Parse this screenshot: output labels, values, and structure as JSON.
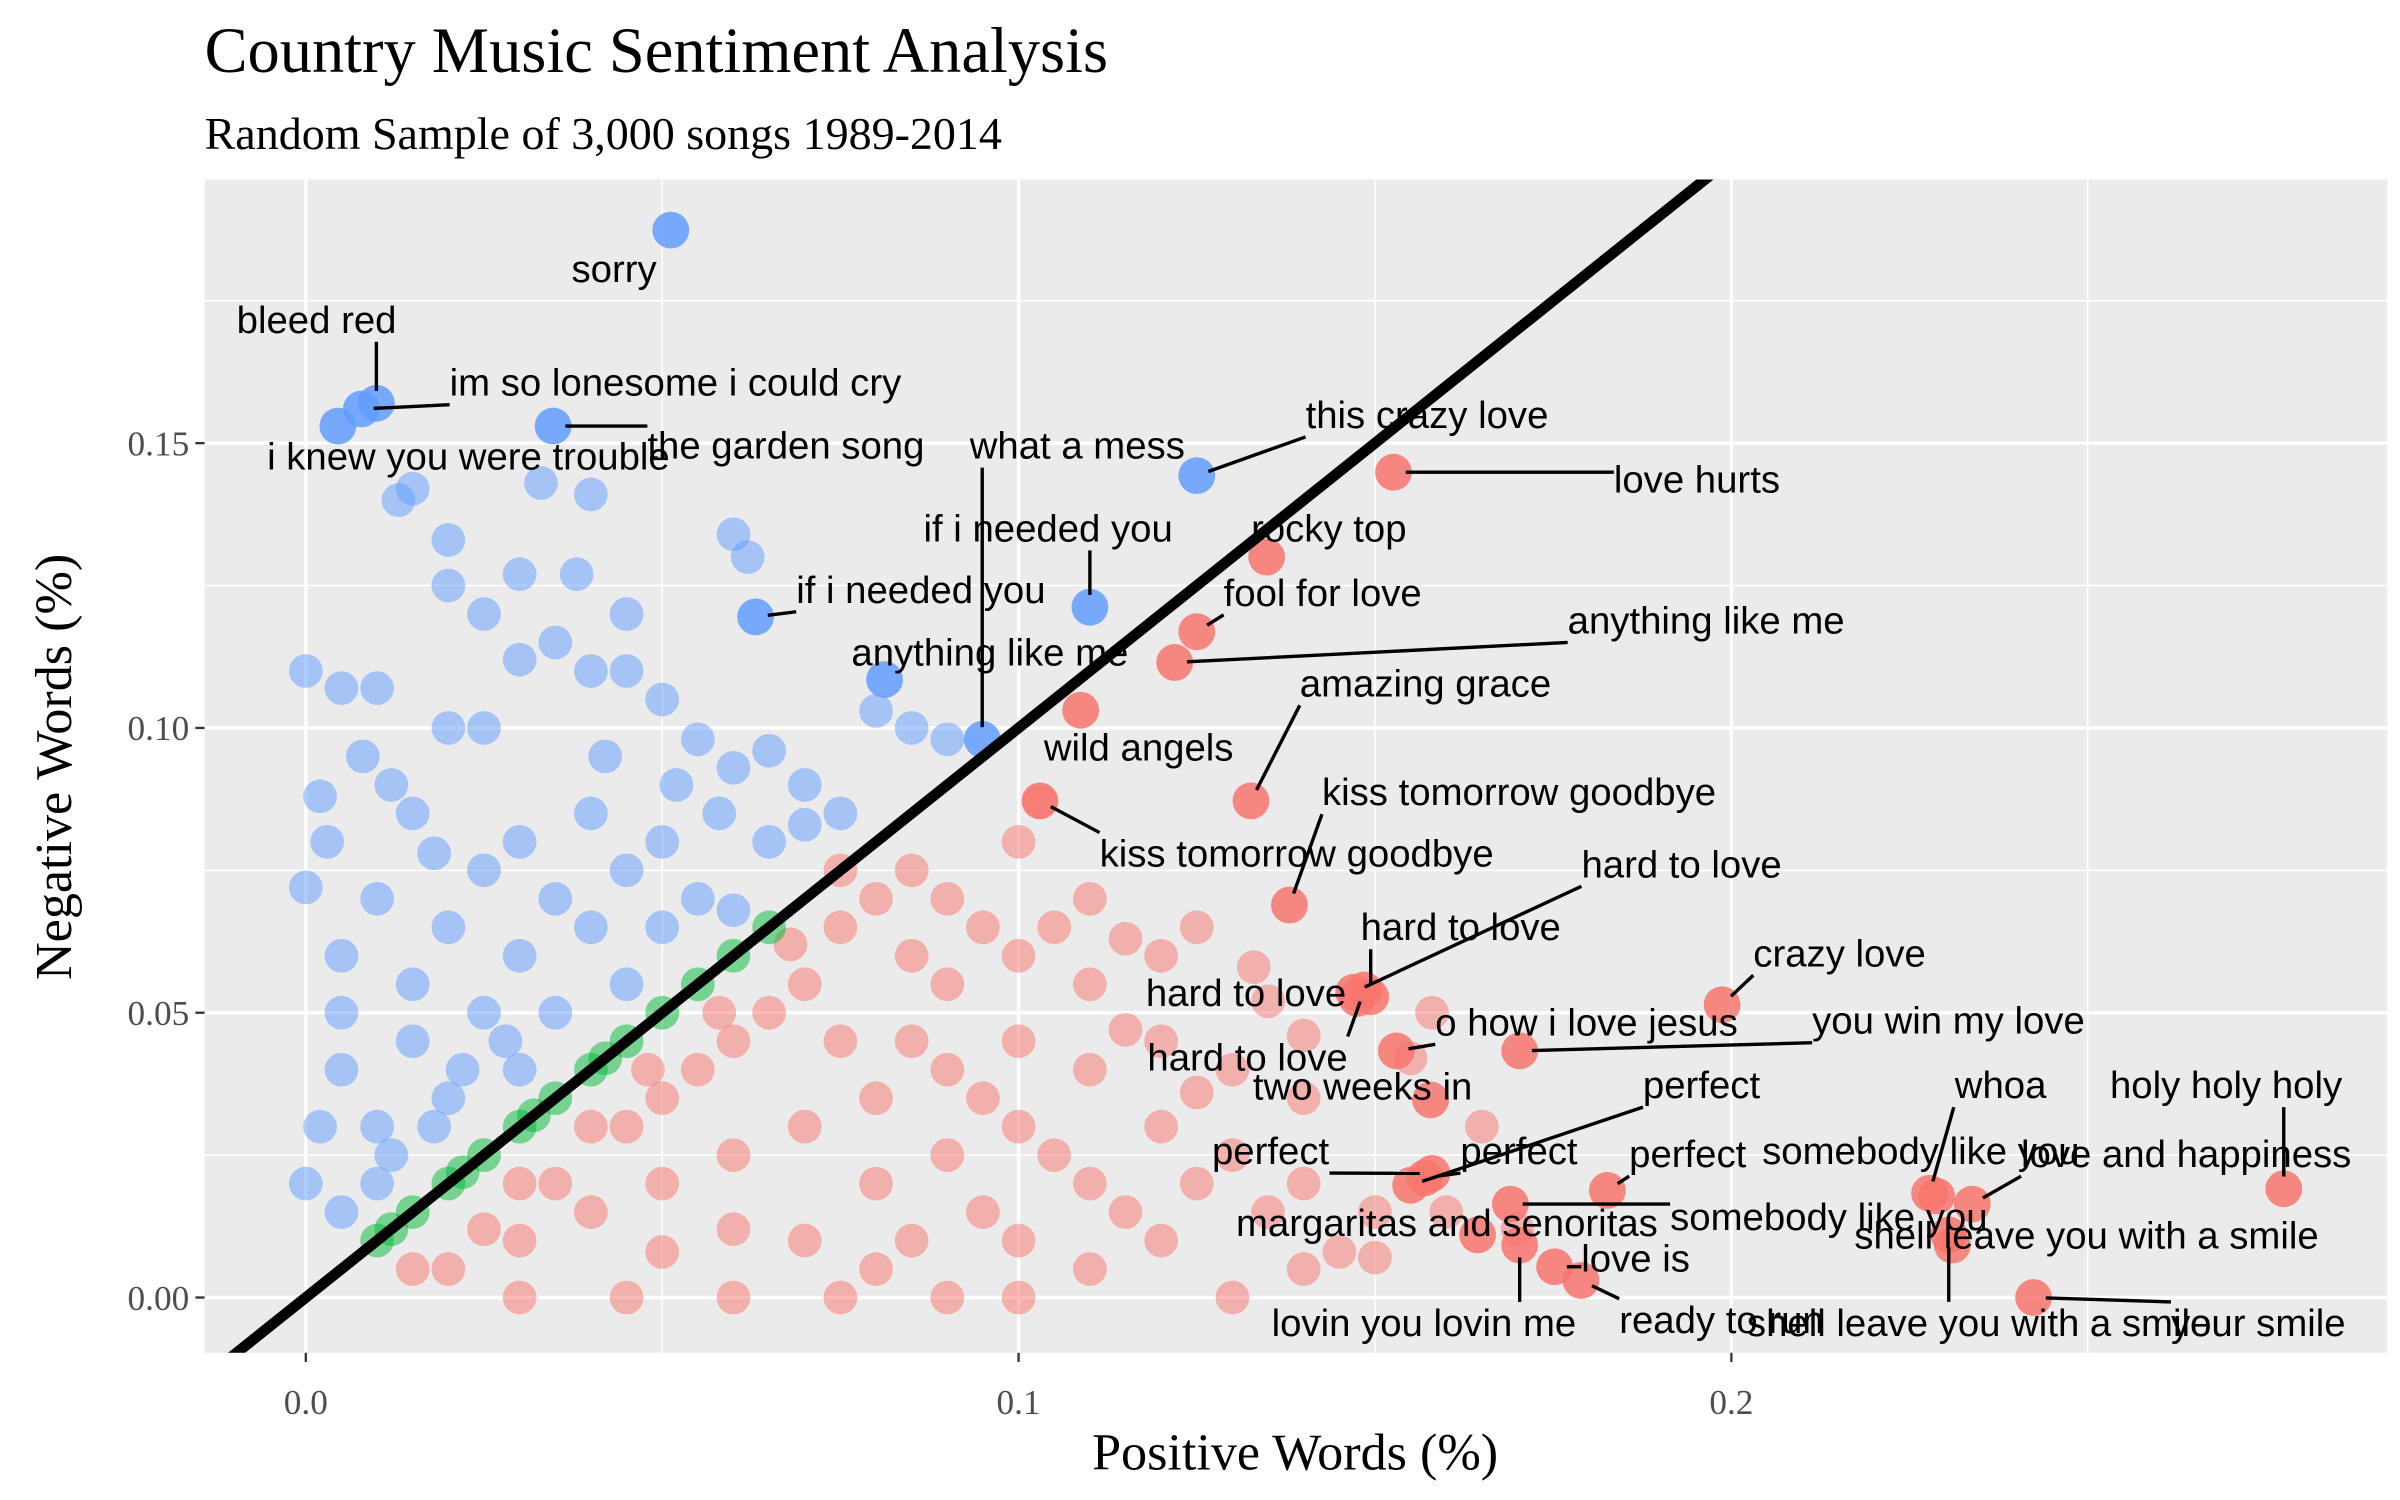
{
  "chart_data": {
    "type": "scatter",
    "title": "Country Music Sentiment Analysis",
    "subtitle": "Random Sample of 3,000 songs 1989-2014",
    "x_label": "Positive Words (%)",
    "y_label": "Negative Words (%)",
    "xlim": [
      -0.0142,
      0.292
    ],
    "ylim": [
      -0.0097,
      0.1963
    ],
    "xticks": [
      {
        "value": 0,
        "label": "0.0"
      },
      0.1,
      0.2
    ],
    "yticks": [
      {
        "value": 0,
        "label": "0.00"
      },
      0.05,
      {
        "value": 0.1,
        "label": "0.10"
      },
      0.15
    ],
    "xminor": [
      0.05,
      0.15,
      0.25
    ],
    "yminor": [
      0.025,
      0.075,
      0.125,
      0.175
    ],
    "grid": true,
    "abline": {
      "intercept": 0,
      "slope": 1,
      "color": "#000000"
    },
    "series": [
      {
        "color": "#F8766D",
        "x": [
          0.02,
          0.03,
          0.04,
          0.05,
          0.06,
          0.07,
          0.08,
          0.09,
          0.03,
          0.045,
          0.06,
          0.075,
          0.09,
          0.1,
          0.05,
          0.06,
          0.07,
          0.075,
          0.08,
          0.085,
          0.09,
          0.095,
          0.1,
          0.105,
          0.11,
          0.115,
          0.12,
          0.125,
          0.1,
          0.103,
          0.11,
          0.12,
          0.13,
          0.14,
          0.1,
          0.11,
          0.12,
          0.13,
          0.14,
          0.15,
          0.1,
          0.11,
          0.12,
          0.13,
          0.14,
          0.08,
          0.09,
          0.07,
          0.08,
          0.06,
          0.05,
          0.035,
          0.045,
          0.055,
          0.065,
          0.075,
          0.085,
          0.095,
          0.105,
          0.115,
          0.125,
          0.135,
          0.145,
          0.15,
          0.16,
          0.17,
          0.115,
          0.125,
          0.135,
          0.14,
          0.09,
          0.085,
          0.075,
          0.068,
          0.058,
          0.048,
          0.04,
          0.03,
          0.025,
          0.015,
          0.1,
          0.11,
          0.095,
          0.085,
          0.158,
          0.155,
          0.165,
          0.133
        ],
        "values": [
          0.005,
          0.01,
          0.015,
          0.02,
          0.025,
          0.03,
          0.035,
          0.04,
          0.0,
          0.0,
          0.0,
          0.0,
          0.0,
          0.0,
          0.035,
          0.045,
          0.055,
          0.065,
          0.07,
          0.06,
          0.055,
          0.065,
          0.06,
          0.065,
          0.07,
          0.063,
          0.06,
          0.065,
          0.08,
          0.087,
          0.055,
          0.045,
          0.04,
          0.035,
          0.045,
          0.04,
          0.03,
          0.025,
          0.02,
          0.015,
          0.03,
          0.02,
          0.01,
          0.0,
          0.005,
          0.02,
          0.025,
          0.01,
          0.005,
          0.012,
          0.008,
          0.02,
          0.03,
          0.04,
          0.05,
          0.045,
          0.045,
          0.035,
          0.025,
          0.015,
          0.02,
          0.015,
          0.008,
          0.007,
          0.015,
          0.012,
          0.047,
          0.036,
          0.052,
          0.046,
          0.07,
          0.075,
          0.075,
          0.062,
          0.05,
          0.04,
          0.03,
          0.02,
          0.012,
          0.005,
          0.01,
          0.005,
          0.015,
          0.01,
          0.05,
          0.042,
          0.03,
          0.058
        ]
      },
      {
        "color": "#619CFF",
        "x": [
          0,
          0.005,
          0.01,
          0.002,
          0.008,
          0.012,
          0.015,
          0.02,
          0.025,
          0.03,
          0.035,
          0.04,
          0.045,
          0.05,
          0.055,
          0.06,
          0.065,
          0.07,
          0.075,
          0.08,
          0.085,
          0.09,
          0.03,
          0.02,
          0.02,
          0.038,
          0.045,
          0.025,
          0.015,
          0.013,
          0.04,
          0.033,
          0.06,
          0.062,
          0.005,
          0.005,
          0.005,
          0.01,
          0.01,
          0.015,
          0.015,
          0.02,
          0.02,
          0.025,
          0.025,
          0.03,
          0.03,
          0.03,
          0.035,
          0.035,
          0.04,
          0.04,
          0.045,
          0.045,
          0.05,
          0.05,
          0.055,
          0.06,
          0.065,
          0.07,
          0,
          0.005,
          0.01,
          0.002,
          0.012,
          0.018,
          0.022,
          0.028,
          0,
          0.003,
          0.018,
          0.042,
          0.052,
          0.058
        ],
        "values": [
          0.11,
          0.107,
          0.107,
          0.088,
          0.095,
          0.09,
          0.085,
          0.1,
          0.1,
          0.112,
          0.115,
          0.11,
          0.11,
          0.105,
          0.098,
          0.093,
          0.096,
          0.09,
          0.085,
          0.103,
          0.1,
          0.098,
          0.127,
          0.133,
          0.125,
          0.127,
          0.12,
          0.12,
          0.142,
          0.14,
          0.141,
          0.143,
          0.134,
          0.13,
          0.06,
          0.05,
          0.04,
          0.07,
          0.03,
          0.055,
          0.045,
          0.065,
          0.035,
          0.075,
          0.05,
          0.08,
          0.06,
          0.04,
          0.07,
          0.05,
          0.085,
          0.065,
          0.075,
          0.055,
          0.08,
          0.065,
          0.07,
          0.068,
          0.08,
          0.083,
          0.02,
          0.015,
          0.02,
          0.03,
          0.025,
          0.03,
          0.04,
          0.045,
          0.072,
          0.08,
          0.078,
          0.095,
          0.09,
          0.085
        ]
      },
      {
        "color": "#00BA38",
        "x": [
          0.01,
          0.015,
          0.02,
          0.025,
          0.03,
          0.035,
          0.04,
          0.045,
          0.05,
          0.055,
          0.06,
          0.065,
          0.012,
          0.022,
          0.032,
          0.042
        ],
        "values": [
          0.01,
          0.015,
          0.02,
          0.025,
          0.03,
          0.035,
          0.04,
          0.045,
          0.05,
          0.055,
          0.06,
          0.065,
          0.012,
          0.022,
          0.032,
          0.042
        ]
      },
      {
        "color": "#619CFF",
        "x": [
          0.0512,
          0.0099,
          0.0078,
          0.0045,
          0.0347,
          0.0949,
          0.11,
          0.0631,
          0.0812,
          0.125
        ],
        "values": [
          0.1874,
          0.157,
          0.156,
          0.153,
          0.153,
          0.098,
          0.1212,
          0.1195,
          0.1085,
          0.1443
        ],
        "labels": [
          "sorry",
          "bleed red",
          "im so lonesome i could cry",
          "i knew you were trouble",
          "the garden song",
          "what a mess",
          "if i needed you",
          "if i needed you",
          "anything like me",
          "this crazy love"
        ]
      },
      {
        "color": "#F8766D",
        "x": [
          0.1526,
          0.1348,
          0.125,
          0.1219,
          0.1087,
          0.1326,
          0.138,
          0.103,
          0.147,
          0.1494,
          0.1475,
          0.1485,
          0.1987,
          0.153,
          0.1703,
          0.1578,
          0.155,
          0.158,
          0.157,
          0.1826,
          0.2278,
          0.2288,
          0.169,
          0.2338,
          0.2775,
          0.1644,
          0.231,
          0.2305,
          0.1752,
          0.1703,
          0.1789,
          0.2424
        ],
        "values": [
          0.1449,
          0.13,
          0.1169,
          0.1115,
          0.1031,
          0.0872,
          0.0689,
          0.0872,
          0.0536,
          0.0528,
          0.0525,
          0.054,
          0.0514,
          0.0433,
          0.0433,
          0.0347,
          0.0197,
          0.0218,
          0.021,
          0.0188,
          0.0183,
          0.0178,
          0.0164,
          0.0164,
          0.0191,
          0.011,
          0.0092,
          0.011,
          0.0054,
          0.0092,
          0.003,
          0.0
        ],
        "labels": [
          "love hurts",
          "rocky top",
          "fool for love",
          "anything like me",
          "wild angels",
          "amazing grace",
          "kiss tomorrow goodbye",
          "kiss tomorrow goodbye",
          "hard to love",
          "hard to love",
          "hard to love",
          "hard to love",
          "crazy love",
          "o how i love jesus",
          "you win my love",
          "two weeks in",
          "perfect",
          "perfect",
          "perfect",
          "perfect",
          "whoa",
          "somebody like you",
          "somebody like you",
          "love and happiness",
          "holy holy holy",
          "margaritas and senoritas",
          "shell leave you with a smile",
          "shell leave you with a smile",
          "love is",
          "lovin you lovin me",
          "ready to run",
          "your smile"
        ]
      }
    ]
  }
}
